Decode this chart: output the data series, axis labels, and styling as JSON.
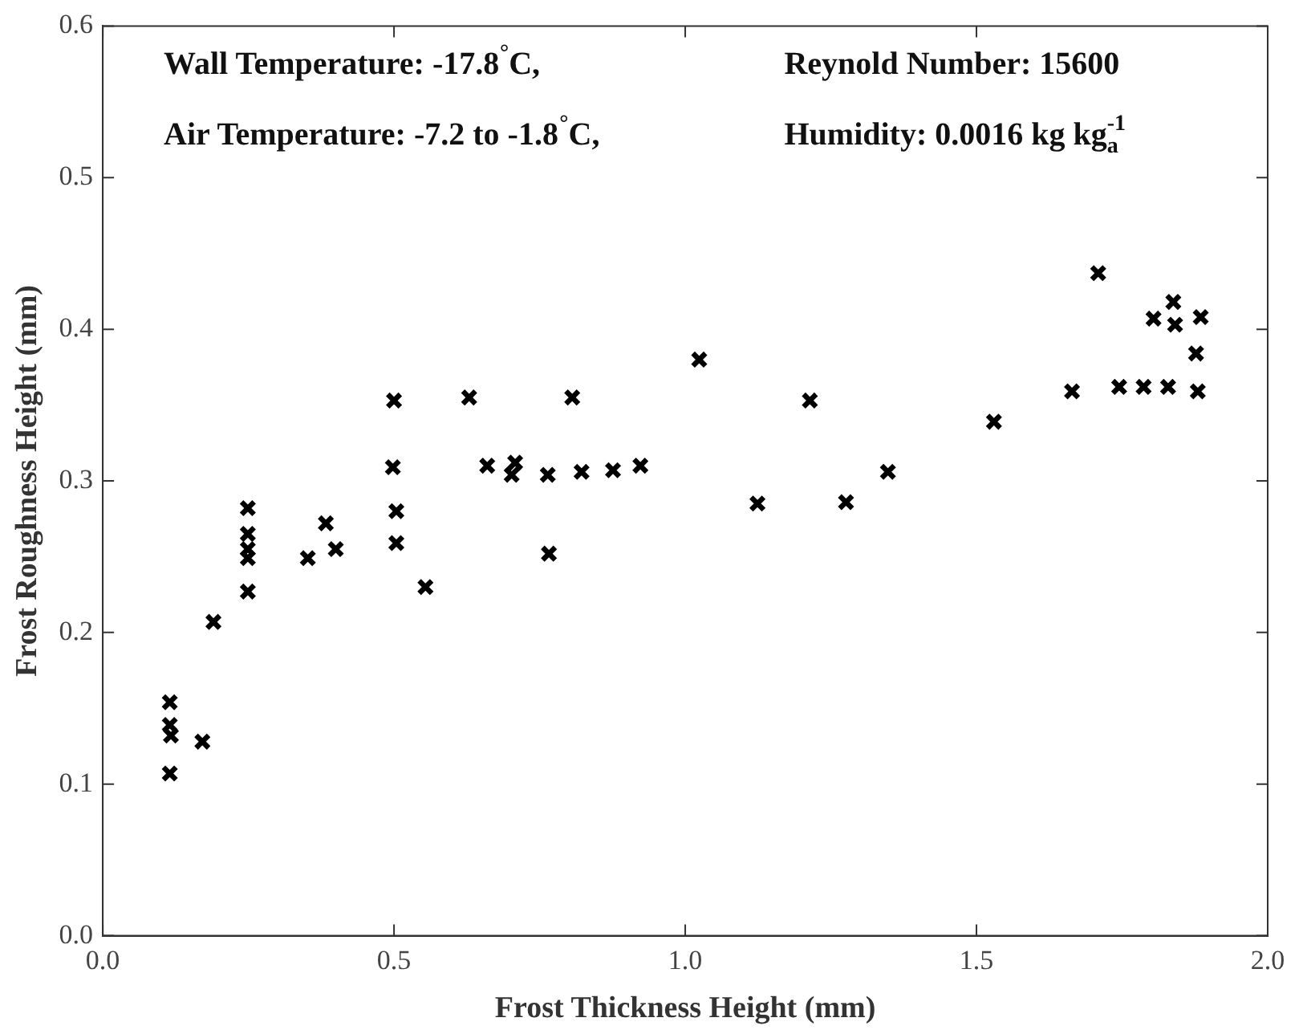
{
  "chart_data": {
    "type": "scatter",
    "xlabel": "Frost Thickness Height (mm)",
    "ylabel": "Frost Roughness Height (mm)",
    "xlim": [
      0,
      2
    ],
    "xticks": [
      {
        "value": 0,
        "label": "0.0"
      },
      {
        "value": 0.5,
        "label": "0.5"
      },
      {
        "value": 1,
        "label": "1.0"
      },
      {
        "value": 1.5,
        "label": "1.5"
      },
      {
        "value": 2,
        "label": "2.0"
      }
    ],
    "ylim": [
      0,
      0.6
    ],
    "yticks": [
      {
        "value": 0,
        "label": "0.0"
      },
      0.1,
      0.2,
      0.3,
      0.4,
      0.5,
      0.6
    ],
    "grid": false,
    "legend": false,
    "marker": "cross",
    "annotations": [
      "Wall Temperature: -17.8$^{°}$C,",
      "Reynold Number: 15600",
      "Air Temperature: -7.2 to -1.8$^{°}$C,",
      "Humidity: 0.0016 kg kg$_{a}$$^{-1}$"
    ],
    "series": [
      {
        "color": "#000000",
        "x": [
          0.115,
          0.115,
          0.117,
          0.115,
          0.171,
          0.19,
          0.249,
          0.249,
          0.249,
          0.249,
          0.249,
          0.352,
          0.383,
          0.4,
          0.5,
          0.498,
          0.504,
          0.504,
          0.554,
          0.629,
          0.66,
          0.708,
          0.702,
          0.764,
          0.766,
          0.806,
          0.822,
          0.876,
          0.923,
          1.024,
          1.124,
          1.214,
          1.276,
          1.348,
          1.53,
          1.664,
          1.709,
          1.745,
          1.787,
          1.829,
          1.804,
          1.838,
          1.841,
          1.885,
          1.877,
          1.88
        ],
        "values": [
          0.154,
          0.139,
          0.132,
          0.107,
          0.128,
          0.207,
          0.282,
          0.265,
          0.255,
          0.249,
          0.227,
          0.249,
          0.272,
          0.255,
          0.353,
          0.309,
          0.28,
          0.259,
          0.23,
          0.355,
          0.31,
          0.312,
          0.304,
          0.304,
          0.252,
          0.355,
          0.306,
          0.307,
          0.31,
          0.38,
          0.285,
          0.353,
          0.286,
          0.306,
          0.339,
          0.359,
          0.437,
          0.362,
          0.362,
          0.362,
          0.407,
          0.418,
          0.403,
          0.408,
          0.384,
          0.359
        ]
      }
    ]
  }
}
